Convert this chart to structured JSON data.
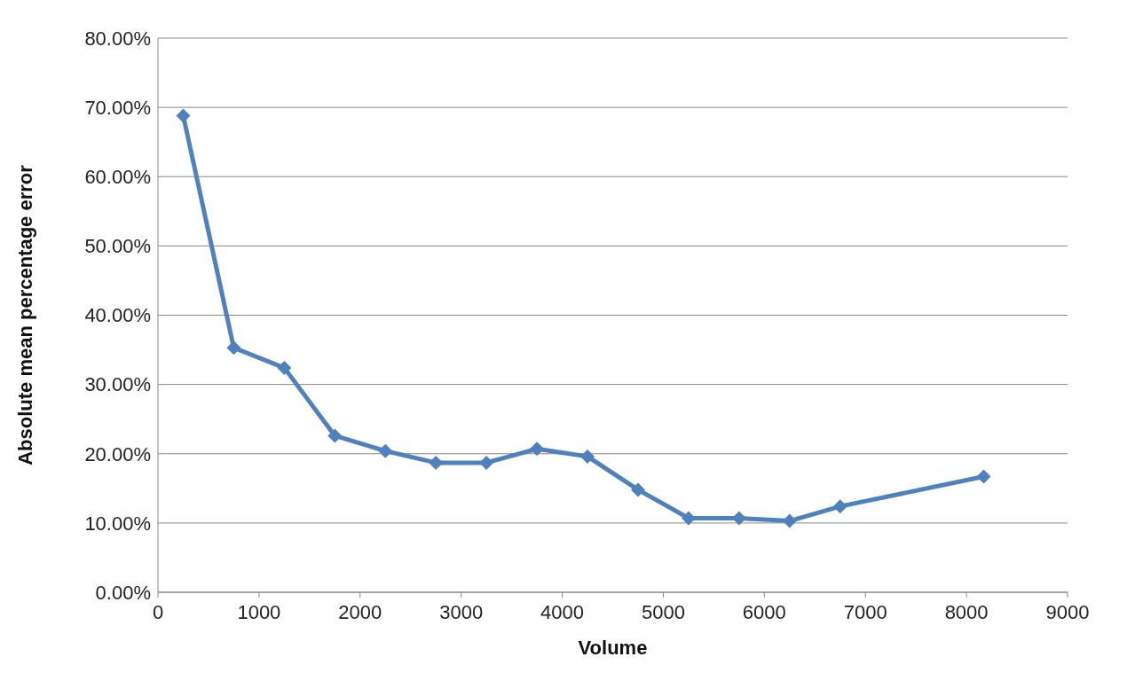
{
  "chart_data": {
    "type": "line",
    "xlabel": "Volume",
    "ylabel": "Absolute mean percentage error",
    "x": [
      250,
      750,
      1250,
      1750,
      2250,
      2750,
      3250,
      3750,
      4250,
      4750,
      5250,
      5750,
      6250,
      6750,
      8170
    ],
    "series": [
      {
        "color": "#4f81bd",
        "values": [
          68.8,
          35.3,
          32.4,
          22.6,
          20.4,
          18.7,
          18.7,
          20.7,
          19.6,
          14.8,
          10.7,
          10.7,
          10.3,
          12.4,
          16.7
        ]
      }
    ],
    "xlim": [
      0,
      9000
    ],
    "xticks": [
      0,
      1000,
      2000,
      3000,
      4000,
      5000,
      6000,
      7000,
      8000,
      9000
    ],
    "ylim": [
      0,
      80
    ],
    "yticks": [
      {
        "value": 0,
        "label": "0.00%"
      },
      {
        "value": 10,
        "label": "10.00%"
      },
      {
        "value": 20,
        "label": "20.00%"
      },
      {
        "value": 30,
        "label": "30.00%"
      },
      {
        "value": 40,
        "label": "40.00%"
      },
      {
        "value": 50,
        "label": "50.00%"
      },
      {
        "value": 60,
        "label": "60.00%"
      },
      {
        "value": 70,
        "label": "70.00%"
      },
      {
        "value": 80,
        "label": "80.00%"
      }
    ],
    "grid": "y",
    "marker": "diamond",
    "line_style": "solid"
  }
}
